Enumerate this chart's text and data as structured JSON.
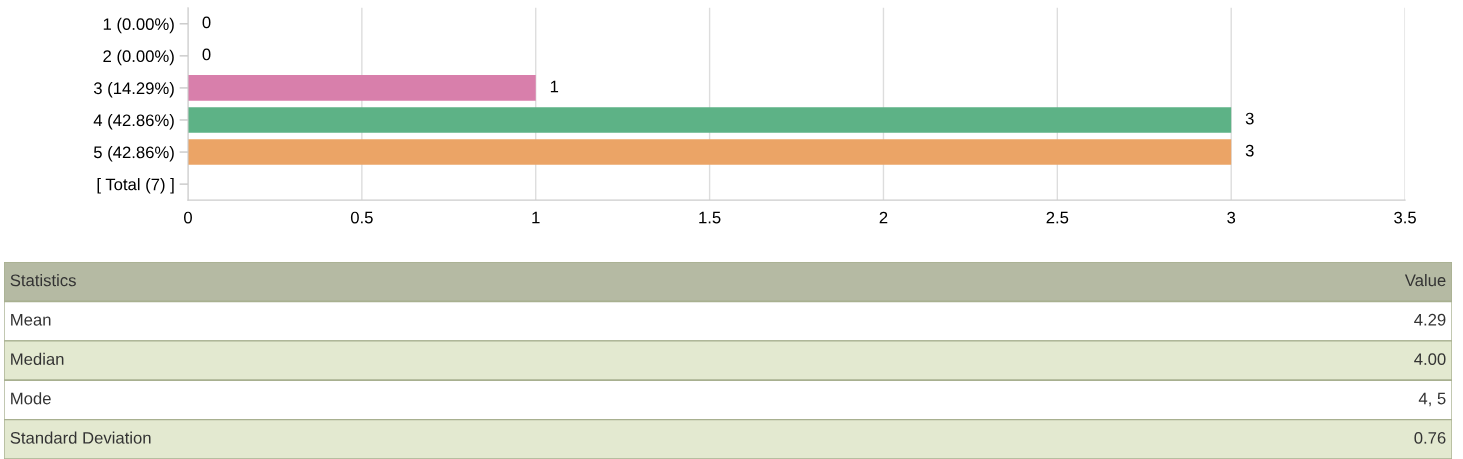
{
  "chart_data": [
    {
      "type": "bar",
      "orientation": "horizontal",
      "categories": [
        "1 (0.00%)",
        "2 (0.00%)",
        "3 (14.29%)",
        "4 (42.86%)",
        "5 (42.86%)",
        "[ Total (7) ]"
      ],
      "values": [
        0,
        0,
        1,
        3,
        3,
        null
      ],
      "colors": [
        null,
        null,
        "#d87fab",
        "#5db286",
        "#eba466",
        null
      ],
      "xlim": [
        0,
        3.5
      ],
      "xticks": [
        0,
        0.5,
        1,
        1.5,
        2,
        2.5,
        3,
        3.5
      ],
      "grid": "x",
      "data_labels": true
    },
    {
      "type": "other",
      "annotations": [
        "Statistics",
        "Value",
        "Mean",
        "4.29",
        "Median",
        "4.00",
        "Mode",
        "4, 5",
        "Standard Deviation",
        "0.76"
      ]
    }
  ]
}
